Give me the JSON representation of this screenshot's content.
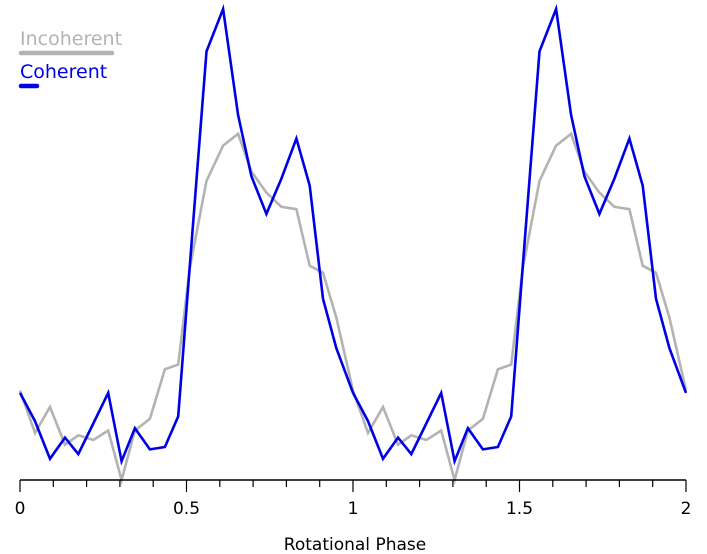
{
  "chart_data": {
    "type": "line",
    "xlabel": "Rotational Phase",
    "ylabel": "",
    "title": "",
    "xlim": [
      0,
      2
    ],
    "ylim": [
      0,
      1
    ],
    "x_major_ticks": [
      0,
      0.5,
      1,
      1.5,
      2
    ],
    "x_major_tick_labels": [
      "0",
      "0.5",
      "1",
      "1.5",
      "2"
    ],
    "x_minor_step": 0.1,
    "grid": false,
    "legend": "top-left",
    "x": [
      0,
      0.045,
      0.09,
      0.135,
      0.175,
      0.22,
      0.265,
      0.305,
      0.345,
      0.39,
      0.435,
      0.475,
      0.51,
      0.56,
      0.61,
      0.655,
      0.695,
      0.74,
      0.785,
      0.83,
      0.87,
      0.91,
      0.95,
      1.0,
      1.045,
      1.09,
      1.135,
      1.175,
      1.22,
      1.265,
      1.305,
      1.345,
      1.39,
      1.435,
      1.475,
      1.51,
      1.56,
      1.61,
      1.655,
      1.695,
      1.74,
      1.785,
      1.83,
      1.87,
      1.91,
      1.95,
      2.0
    ],
    "series": [
      {
        "name": "Incoherent",
        "color": "#b3b3b3",
        "values": [
          0.19,
          0.1,
          0.155,
          0.075,
          0.095,
          0.085,
          0.105,
          0,
          0.105,
          0.13,
          0.235,
          0.245,
          0.45,
          0.635,
          0.71,
          0.735,
          0.655,
          0.61,
          0.58,
          0.575,
          0.455,
          0.44,
          0.345,
          0.19,
          0.1,
          0.155,
          0.075,
          0.095,
          0.085,
          0.105,
          0,
          0.105,
          0.13,
          0.235,
          0.245,
          0.45,
          0.635,
          0.71,
          0.735,
          0.655,
          0.61,
          0.58,
          0.575,
          0.455,
          0.44,
          0.345,
          0.19
        ]
      },
      {
        "name": "Coherent",
        "color": "#0000e6",
        "values": [
          0.185,
          0.125,
          0.045,
          0.09,
          0.055,
          0.12,
          0.185,
          0.04,
          0.11,
          0.065,
          0.07,
          0.135,
          0.455,
          0.91,
          1.0,
          0.775,
          0.645,
          0.565,
          0.64,
          0.725,
          0.625,
          0.385,
          0.28,
          0.185,
          0.125,
          0.045,
          0.09,
          0.055,
          0.12,
          0.185,
          0.04,
          0.11,
          0.065,
          0.07,
          0.135,
          0.455,
          0.91,
          1.0,
          0.775,
          0.645,
          0.565,
          0.64,
          0.725,
          0.625,
          0.385,
          0.28,
          0.185
        ]
      }
    ]
  }
}
